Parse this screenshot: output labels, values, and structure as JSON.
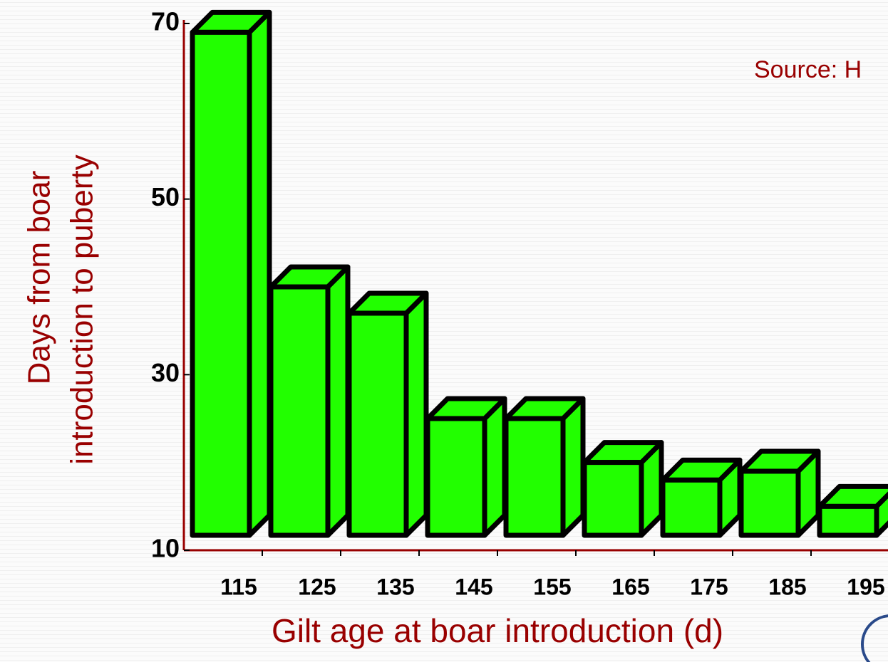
{
  "chart_data": {
    "type": "bar3d",
    "annotation": "Source: H",
    "ylabel": [
      "Days from boar",
      "introduction to puberty"
    ],
    "xlabel": "Gilt age at boar introduction (d)",
    "categories": [
      "115",
      "125",
      "135",
      "145",
      "155",
      "165",
      "175",
      "185",
      "195"
    ],
    "values": [
      69,
      40,
      37,
      25,
      25,
      20,
      18,
      19,
      15
    ],
    "color": "#22ff00",
    "axis_color": "#990000",
    "ylim": [
      10,
      70
    ],
    "yticks": [
      10,
      30,
      50,
      70
    ]
  }
}
